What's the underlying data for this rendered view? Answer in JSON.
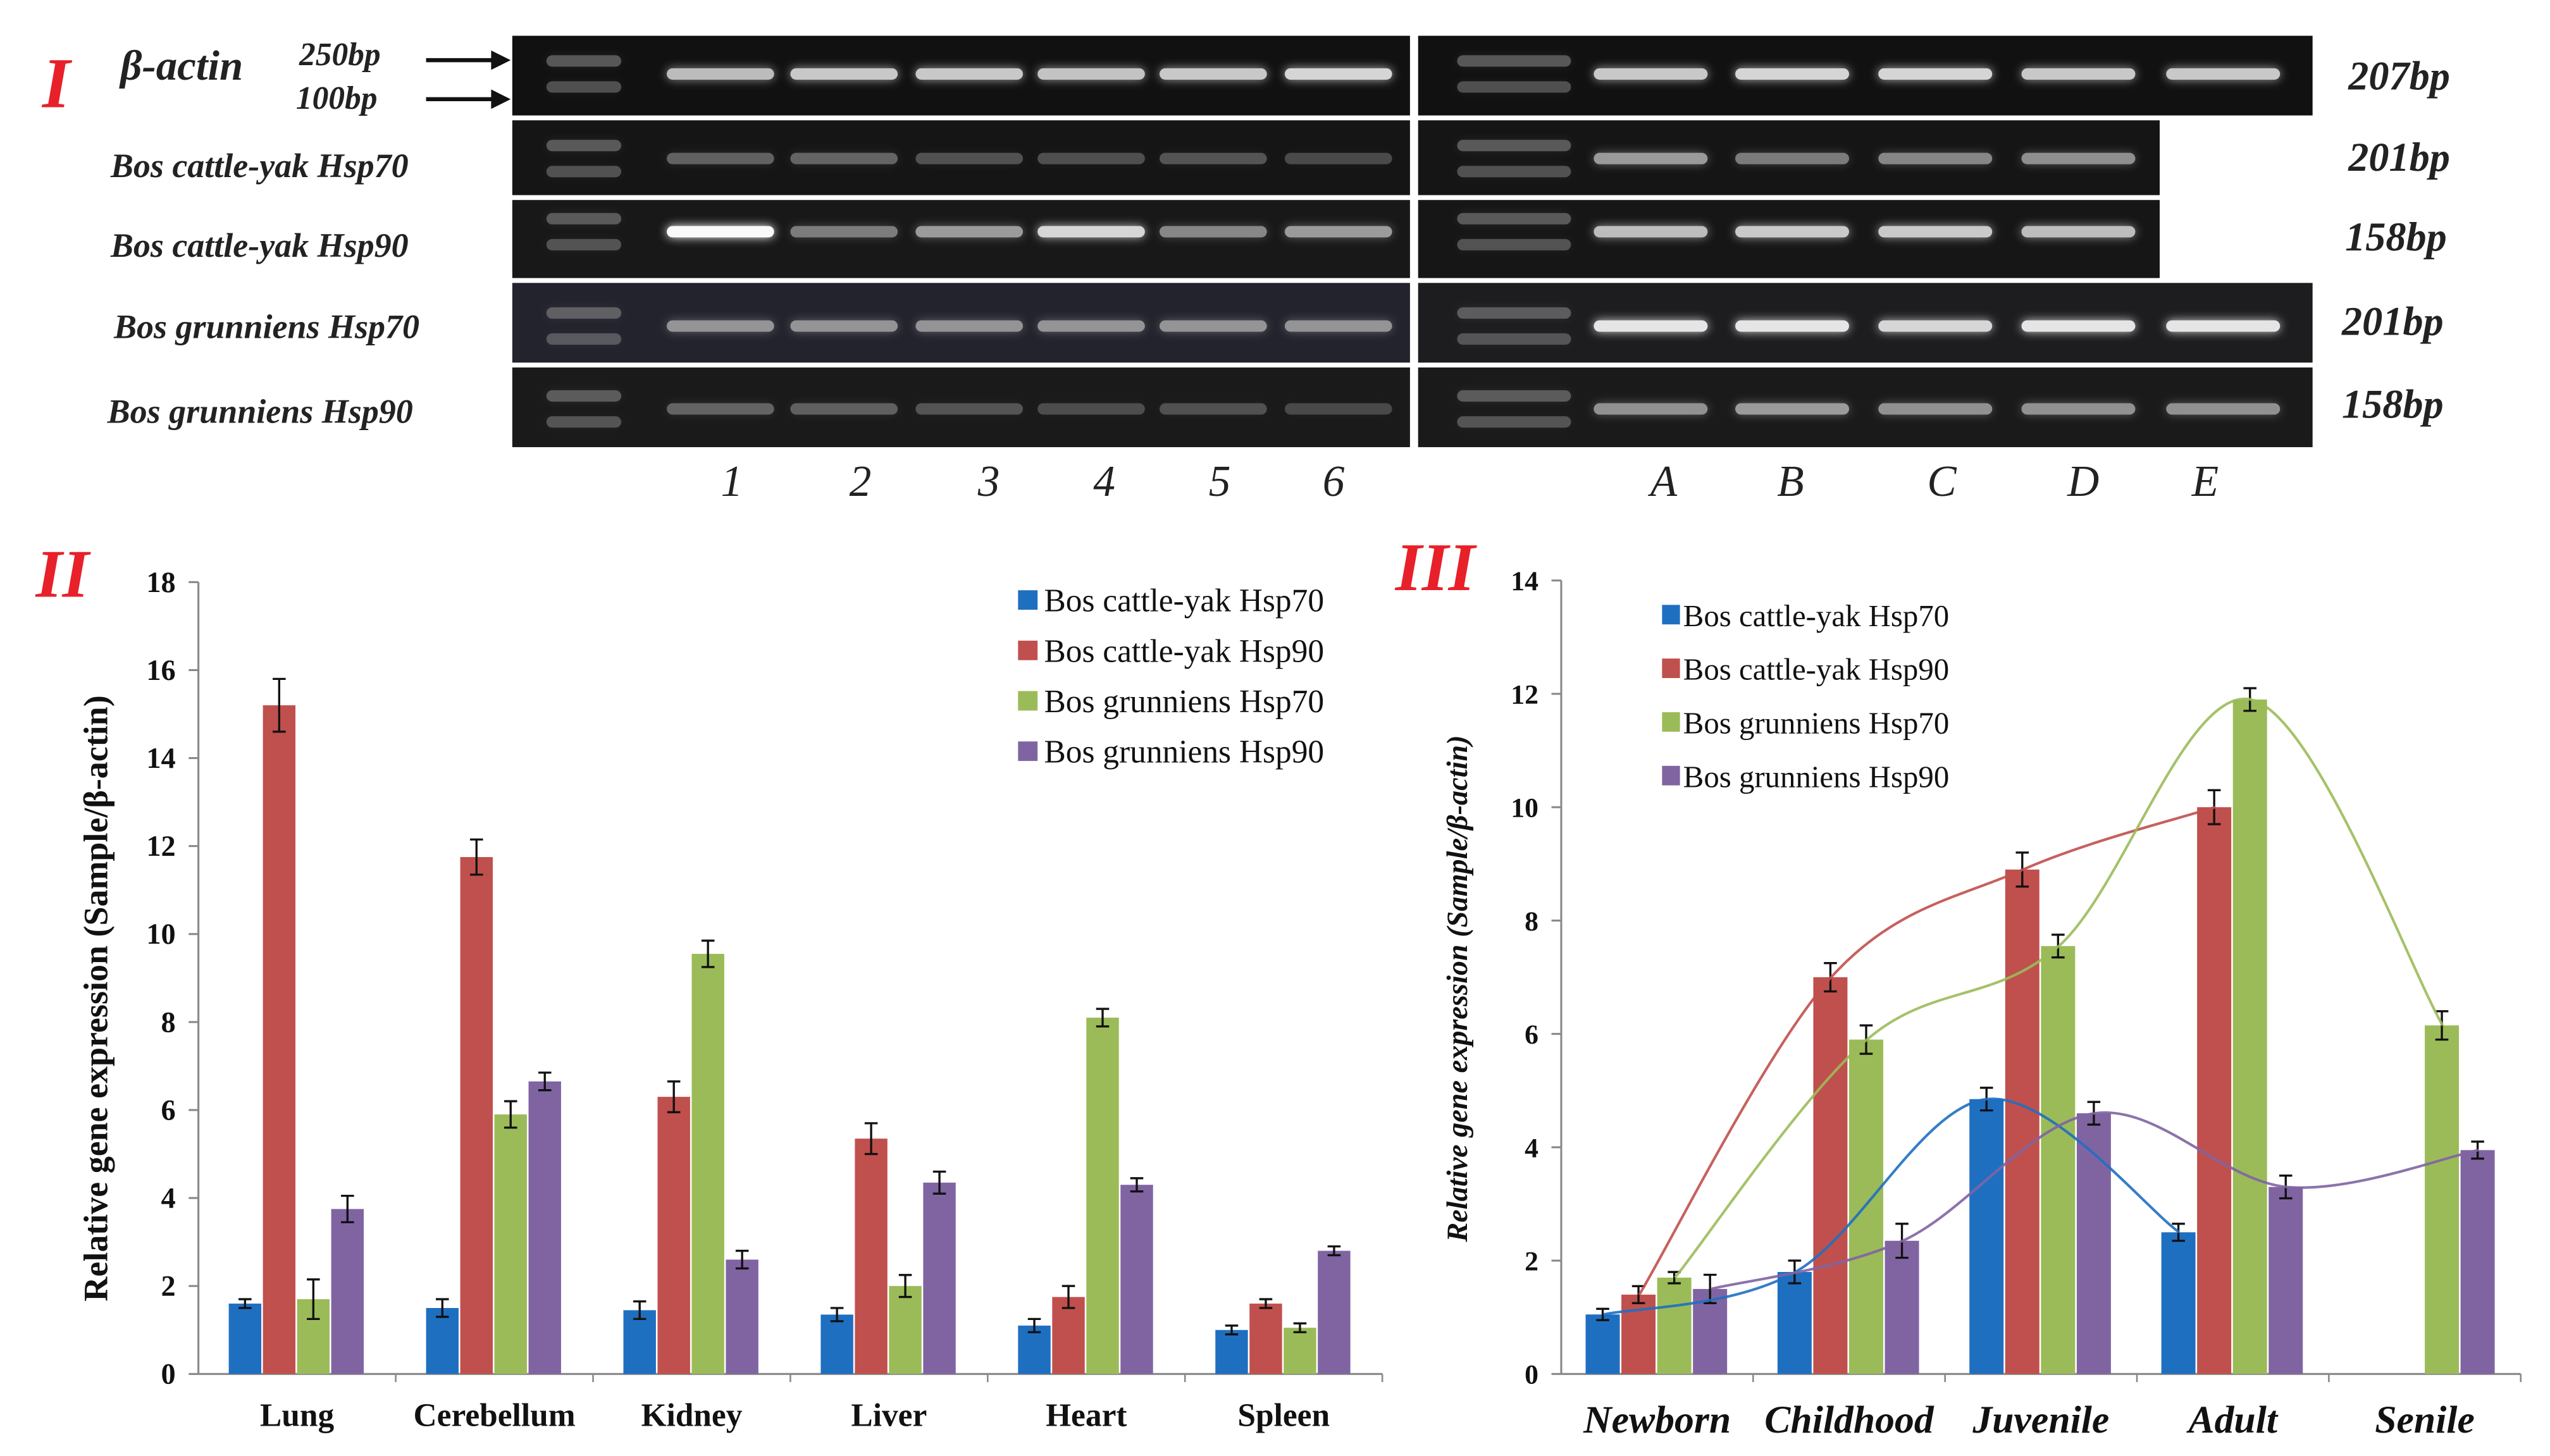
{
  "panel_I": {
    "label": "I",
    "marker_gene": "β-actin",
    "ladder_250": "250bp",
    "ladder_100": "100bp",
    "rows": [
      {
        "gene": "β-actin",
        "size": "207bp"
      },
      {
        "gene": "Bos cattle-yak Hsp70",
        "size": "201bp"
      },
      {
        "gene": "Bos cattle-yak Hsp90",
        "size": "158bp"
      },
      {
        "gene": "Bos grunniens Hsp70",
        "size": "201bp"
      },
      {
        "gene": "Bos grunniens Hsp90",
        "size": "158bp"
      }
    ],
    "lanes_tissue": [
      "1",
      "2",
      "3",
      "4",
      "5",
      "6"
    ],
    "lanes_age": [
      "A",
      "B",
      "C",
      "D",
      "E"
    ]
  },
  "panel_II": {
    "label": "II"
  },
  "panel_III": {
    "label": "III"
  },
  "colors": {
    "s1": "#1f6fc1",
    "s2": "#c0504d",
    "s3": "#9bbb59",
    "s4": "#8064a2"
  },
  "chart_data": [
    {
      "type": "bar",
      "title": "",
      "xlabel": "",
      "ylabel": "Relative gene expression (Sample/β-actin)",
      "ylim": [
        0,
        18
      ],
      "yticks": [
        0,
        2,
        4,
        6,
        8,
        10,
        12,
        14,
        16,
        18
      ],
      "categories": [
        "Lung",
        "Cerebellum",
        "Kidney",
        "Liver",
        "Heart",
        "Spleen"
      ],
      "legend_position": "top-right",
      "series": [
        {
          "name": "Bos cattle-yak Hsp70",
          "values": [
            1.6,
            1.5,
            1.45,
            1.35,
            1.1,
            1.0
          ],
          "errors": [
            0.1,
            0.2,
            0.2,
            0.15,
            0.15,
            0.1
          ]
        },
        {
          "name": "Bos cattle-yak Hsp90",
          "values": [
            15.2,
            11.75,
            6.3,
            5.35,
            1.75,
            1.6
          ],
          "errors": [
            0.6,
            0.4,
            0.35,
            0.35,
            0.25,
            0.1
          ]
        },
        {
          "name": "Bos grunniens Hsp70",
          "values": [
            1.7,
            5.9,
            9.55,
            2.0,
            8.1,
            1.05
          ],
          "errors": [
            0.45,
            0.3,
            0.3,
            0.25,
            0.2,
            0.1
          ]
        },
        {
          "name": "Bos grunniens Hsp90",
          "values": [
            3.75,
            6.65,
            2.6,
            4.35,
            4.3,
            2.8
          ],
          "errors": [
            0.3,
            0.2,
            0.2,
            0.25,
            0.15,
            0.1
          ]
        }
      ]
    },
    {
      "type": "bar",
      "title": "",
      "xlabel": "",
      "ylabel": "Relative gene expression (Sample/β-actin)",
      "ylim": [
        0,
        14
      ],
      "yticks": [
        0,
        2,
        4,
        6,
        8,
        10,
        12,
        14
      ],
      "categories": [
        "Newborn",
        "Childhood",
        "Juvenile",
        "Adult",
        "Senile"
      ],
      "legend_position": "top-left",
      "trend_lines": "smooth polynomial trend line per series",
      "series": [
        {
          "name": "Bos cattle-yak Hsp70",
          "values": [
            1.05,
            1.8,
            4.85,
            2.5,
            null
          ],
          "errors": [
            0.1,
            0.2,
            0.2,
            0.15,
            null
          ]
        },
        {
          "name": "Bos cattle-yak Hsp90",
          "values": [
            1.4,
            7.0,
            8.9,
            10.0,
            null
          ],
          "errors": [
            0.15,
            0.25,
            0.3,
            0.3,
            null
          ]
        },
        {
          "name": "Bos grunniens Hsp70",
          "values": [
            1.7,
            5.9,
            7.55,
            11.9,
            6.15
          ],
          "errors": [
            0.1,
            0.25,
            0.2,
            0.2,
            0.25
          ]
        },
        {
          "name": "Bos grunniens Hsp90",
          "values": [
            1.5,
            2.35,
            4.6,
            3.3,
            3.95
          ],
          "errors": [
            0.25,
            0.3,
            0.2,
            0.2,
            0.15
          ]
        }
      ]
    }
  ]
}
